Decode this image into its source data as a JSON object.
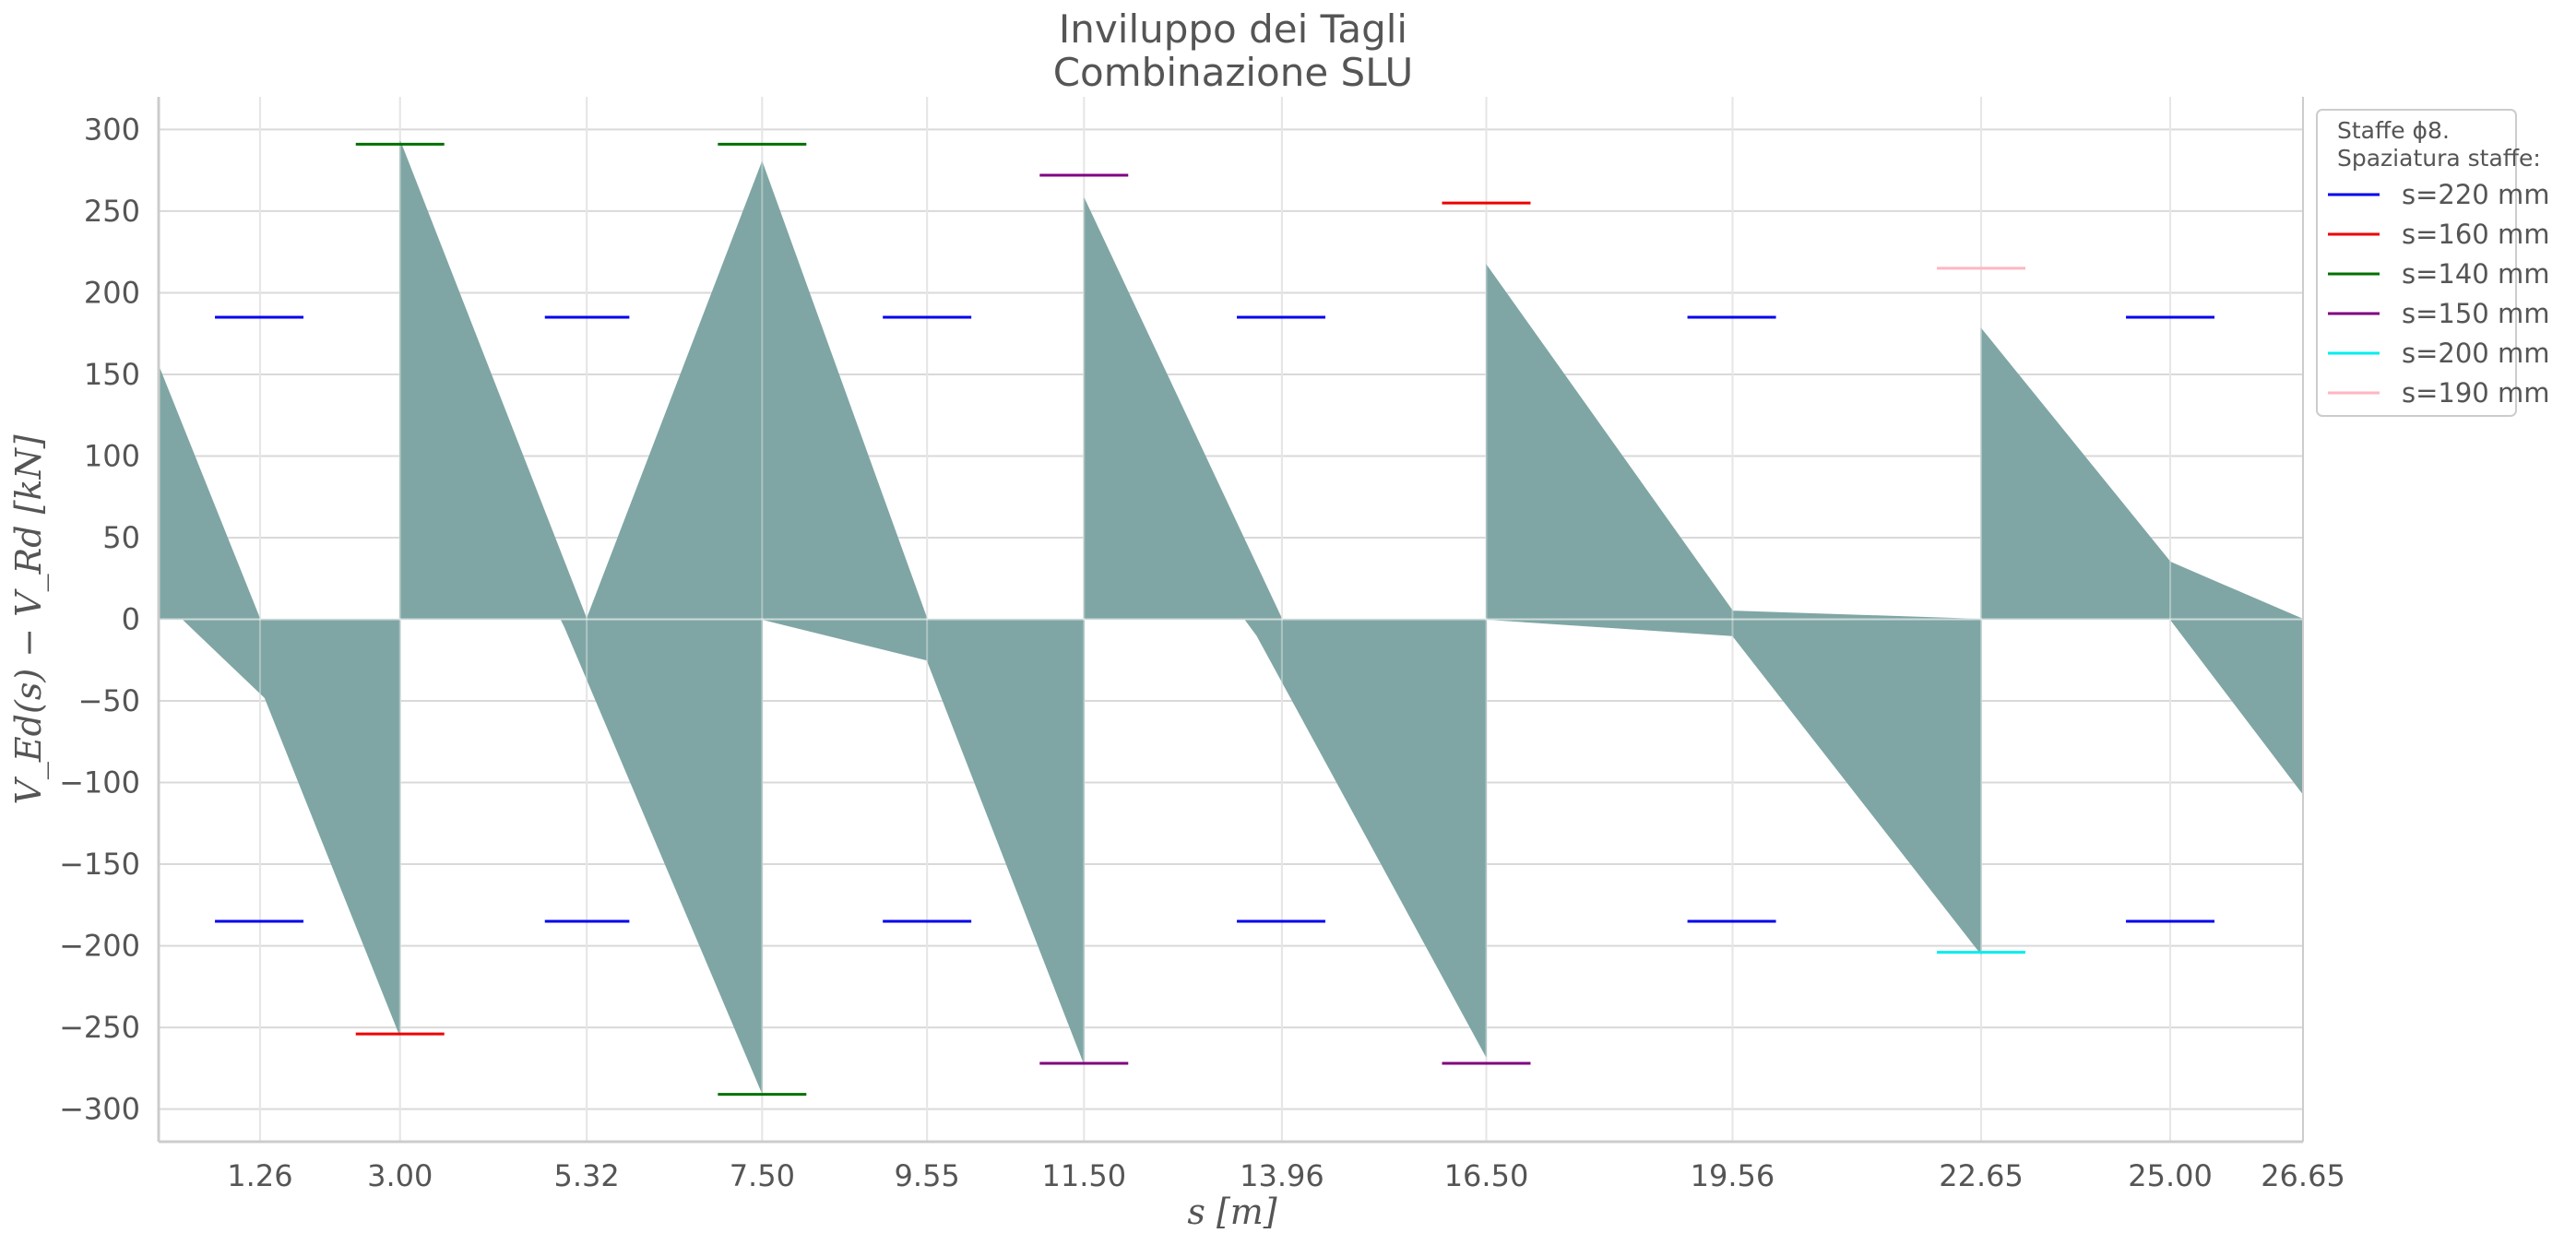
{
  "chart_data": {
    "type": "area",
    "title": [
      "Inviluppo dei Tagli",
      "Combinazione SLU"
    ],
    "xlabel": "s [m]",
    "ylabel": "V_Ed(s) − V_Rd [kN]",
    "xlim": [
      0,
      26.65
    ],
    "ylim": [
      -320,
      320
    ],
    "grid": true,
    "x_ticks": [
      1.26,
      3.0,
      5.32,
      7.5,
      9.55,
      11.5,
      13.96,
      16.5,
      19.56,
      22.65,
      25.0,
      26.65
    ],
    "x_tick_labels": [
      "1.26",
      "3.00",
      "5.32",
      "7.50",
      "9.55",
      "11.50",
      "13.96",
      "16.50",
      "19.56",
      "22.65",
      "25.00",
      "26.65"
    ],
    "y_ticks": [
      300,
      250,
      200,
      150,
      100,
      50,
      0,
      -50,
      -100,
      -150,
      -200,
      -250,
      -300
    ],
    "y_tick_labels": [
      "300",
      "250",
      "200",
      "150",
      "100",
      "50",
      "0",
      "−50",
      "−100",
      "−150",
      "−200",
      "−250",
      "−300"
    ],
    "fill_color": "#7fa6a4",
    "upper_envelope": {
      "x": [
        0,
        1.26,
        3.0,
        3.0,
        5.32,
        7.5,
        7.5,
        9.55,
        11.5,
        11.5,
        13.96,
        16.5,
        16.5,
        19.56,
        22.65,
        22.65,
        25.0,
        26.65
      ],
      "y": [
        155,
        0,
        0,
        293,
        0,
        280,
        280,
        0,
        0,
        258,
        0,
        0,
        217,
        5,
        0,
        178,
        35,
        0
      ]
    },
    "lower_envelope": {
      "x": [
        0,
        0.3,
        1.32,
        3.0,
        3.0,
        5.0,
        5.05,
        7.5,
        7.5,
        9.55,
        11.5,
        11.5,
        13.5,
        13.65,
        16.5,
        16.5,
        19.56,
        22.65,
        22.65,
        25.0,
        26.65
      ],
      "y": [
        0,
        0,
        -48,
        -255,
        0,
        0,
        -5,
        -290,
        0,
        -25,
        -272,
        0,
        0,
        -10,
        -268,
        0,
        -10,
        -205,
        0,
        0,
        -107
      ]
    },
    "stirrup_limits": [
      {
        "x": [
          0.7,
          1.8
        ],
        "y": 185,
        "color": "#0000ee"
      },
      {
        "x": [
          0.7,
          1.8
        ],
        "y": -185,
        "color": "#0000ee"
      },
      {
        "x": [
          2.45,
          3.55
        ],
        "y": 291,
        "color": "#007000"
      },
      {
        "x": [
          2.45,
          3.55
        ],
        "y": -254,
        "color": "#ee0000"
      },
      {
        "x": [
          4.8,
          5.85
        ],
        "y": 185,
        "color": "#0000ee"
      },
      {
        "x": [
          4.8,
          5.85
        ],
        "y": -185,
        "color": "#0000ee"
      },
      {
        "x": [
          6.95,
          8.05
        ],
        "y": 291,
        "color": "#007000"
      },
      {
        "x": [
          6.95,
          8.05
        ],
        "y": -291,
        "color": "#007000"
      },
      {
        "x": [
          9.0,
          10.1
        ],
        "y": 185,
        "color": "#0000ee"
      },
      {
        "x": [
          9.0,
          10.1
        ],
        "y": -185,
        "color": "#0000ee"
      },
      {
        "x": [
          10.95,
          12.05
        ],
        "y": 272,
        "color": "#800080"
      },
      {
        "x": [
          10.95,
          12.05
        ],
        "y": -272,
        "color": "#800080"
      },
      {
        "x": [
          13.4,
          14.5
        ],
        "y": 185,
        "color": "#0000ee"
      },
      {
        "x": [
          13.4,
          14.5
        ],
        "y": -185,
        "color": "#0000ee"
      },
      {
        "x": [
          15.95,
          17.05
        ],
        "y": 255,
        "color": "#ee0000"
      },
      {
        "x": [
          15.95,
          17.05
        ],
        "y": -272,
        "color": "#800080"
      },
      {
        "x": [
          19.0,
          20.1
        ],
        "y": 185,
        "color": "#0000ee"
      },
      {
        "x": [
          19.0,
          20.1
        ],
        "y": -185,
        "color": "#0000ee"
      },
      {
        "x": [
          22.1,
          23.2
        ],
        "y": 215,
        "color": "#ffb6c1"
      },
      {
        "x": [
          22.1,
          23.2
        ],
        "y": -204,
        "color": "#00eeee"
      },
      {
        "x": [
          24.45,
          25.55
        ],
        "y": 185,
        "color": "#0000ee"
      },
      {
        "x": [
          24.45,
          25.55
        ],
        "y": -185,
        "color": "#0000ee"
      }
    ],
    "legend": {
      "placement": "top-right, outside",
      "title": [
        "Staffe ϕ8.",
        "Spaziatura staffe:"
      ],
      "entries": [
        {
          "label": "s=220 mm",
          "color": "#0000ee"
        },
        {
          "label": "s=160 mm",
          "color": "#ee0000"
        },
        {
          "label": "s=140 mm",
          "color": "#007000"
        },
        {
          "label": "s=150 mm",
          "color": "#800080"
        },
        {
          "label": "s=200 mm",
          "color": "#00eeee"
        },
        {
          "label": "s=190 mm",
          "color": "#ffb6c1"
        }
      ]
    }
  }
}
